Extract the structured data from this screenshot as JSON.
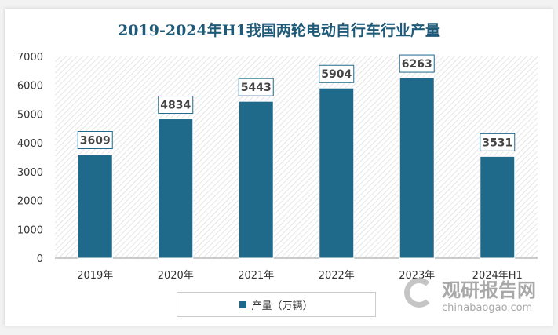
{
  "chart_data": {
    "type": "bar",
    "title": "2019-2024年H1我国两轮电动自行车行业产量",
    "categories": [
      "2019年",
      "2020年",
      "2021年",
      "2022年",
      "2023年",
      "2024年H1"
    ],
    "series": [
      {
        "name": "产量（万辆）",
        "values": [
          3609,
          4834,
          5443,
          5904,
          6263,
          3531
        ]
      }
    ],
    "ylim": [
      0,
      7000
    ],
    "yticks": [
      0,
      1000,
      2000,
      3000,
      4000,
      5000,
      6000,
      7000
    ],
    "legend": "bottom",
    "bar_color": "#1f6a8a",
    "title_color": "#1f5a78"
  },
  "watermark": {
    "cn": "观研报告网",
    "en": "chinabaogao.com"
  }
}
